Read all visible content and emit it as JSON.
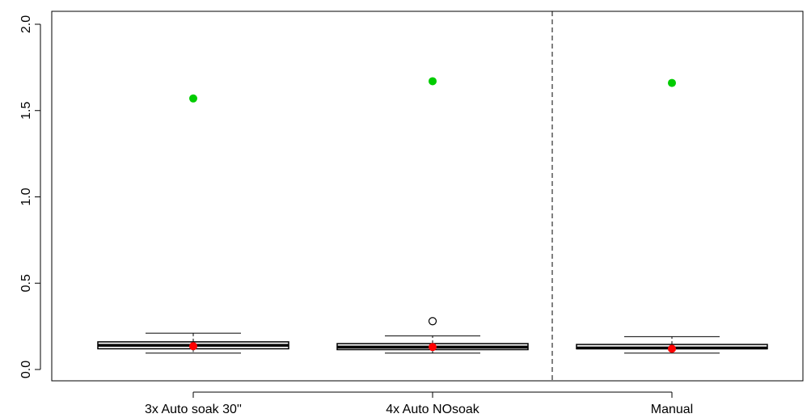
{
  "chart_data": {
    "type": "boxplot",
    "title": "",
    "xlabel": "",
    "ylabel": "",
    "ylim": [
      0,
      2.0
    ],
    "yticks": [
      0.0,
      0.5,
      1.0,
      1.5,
      2.0
    ],
    "ytick_labels": [
      "0.0",
      "0.5",
      "1.0",
      "1.5",
      "2.0"
    ],
    "categories": [
      "3x Auto soak 30''",
      "4x Auto NOsoak",
      "Manual"
    ],
    "boxes": [
      {
        "whisker_low": 0.095,
        "q1": 0.12,
        "median": 0.14,
        "q3": 0.16,
        "whisker_high": 0.21,
        "outliers": []
      },
      {
        "whisker_low": 0.095,
        "q1": 0.115,
        "median": 0.13,
        "q3": 0.15,
        "whisker_high": 0.195,
        "outliers": [
          0.28
        ]
      },
      {
        "whisker_low": 0.095,
        "q1": 0.12,
        "median": 0.125,
        "q3": 0.145,
        "whisker_high": 0.19,
        "outliers": []
      }
    ],
    "overlay_points": {
      "red": {
        "color": "#ff0000",
        "values": [
          0.135,
          0.13,
          0.12
        ]
      },
      "green": {
        "color": "#00cc00",
        "values": [
          1.57,
          1.67,
          1.66
        ]
      }
    },
    "separator_after_category": 2,
    "separator_style": "dashed"
  }
}
